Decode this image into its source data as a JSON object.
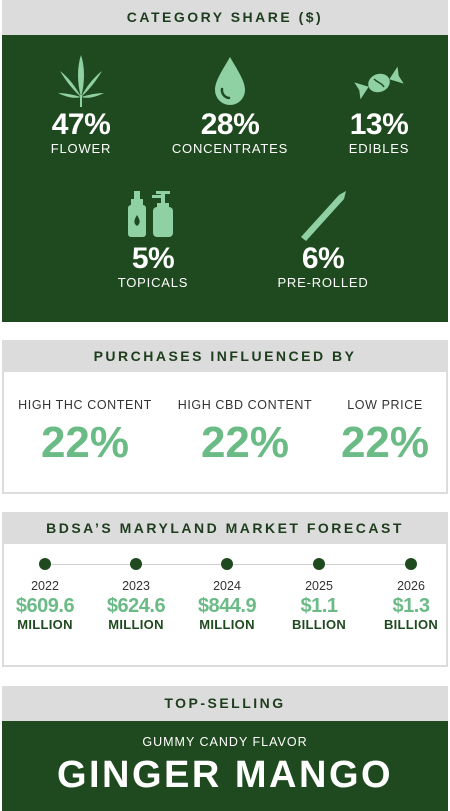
{
  "category_share": {
    "title": "CATEGORY SHARE ($)",
    "items": [
      {
        "icon": "cannabis-leaf-icon",
        "percent": "47%",
        "label": "FLOWER"
      },
      {
        "icon": "droplet-icon",
        "percent": "28%",
        "label": "CONCENTRATES"
      },
      {
        "icon": "candy-icon",
        "percent": "13%",
        "label": "EDIBLES"
      },
      {
        "icon": "bottles-icon",
        "percent": "5%",
        "label": "TOPICALS"
      },
      {
        "icon": "pre-roll-icon",
        "percent": "6%",
        "label": "PRE-ROLLED"
      }
    ]
  },
  "purchases_influenced": {
    "title": "PURCHASES INFLUENCED BY",
    "items": [
      {
        "label": "HIGH THC CONTENT",
        "percent": "22%"
      },
      {
        "label": "HIGH CBD CONTENT",
        "percent": "22%"
      },
      {
        "label": "LOW PRICE",
        "percent": "22%"
      }
    ]
  },
  "forecast": {
    "title": "BDSA’S MARYLAND MARKET FORECAST",
    "items": [
      {
        "year": "2022",
        "amount": "$609.6",
        "unit": "MILLION"
      },
      {
        "year": "2023",
        "amount": "$624.6",
        "unit": "MILLION"
      },
      {
        "year": "2024",
        "amount": "$844.9",
        "unit": "MILLION"
      },
      {
        "year": "2025",
        "amount": "$1.1",
        "unit": "BILLION"
      },
      {
        "year": "2026",
        "amount": "$1.3",
        "unit": "BILLION"
      }
    ]
  },
  "top_selling": {
    "title": "TOP-SELLING",
    "subtitle": "GUMMY CANDY FLAVOR",
    "flavor": "GINGER MANGO"
  },
  "colors": {
    "dark_green": "#1f4a1f",
    "light_green": "#6bbb86",
    "icon_green": "#8fd1a3",
    "header_gray": "#dcdcdc"
  }
}
